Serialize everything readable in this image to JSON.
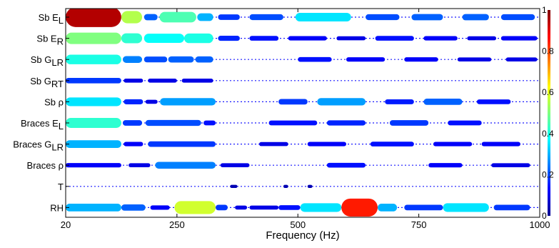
{
  "chart_data": {
    "type": "heatmap",
    "title": "",
    "xlabel": "Frequency (Hz)",
    "ylabel": "",
    "xlim": [
      20,
      1000
    ],
    "x_ticks": [
      "20",
      "250",
      "500",
      "750",
      "1000"
    ],
    "x_tick_values": [
      20,
      250,
      500,
      750,
      1000
    ],
    "rows": [
      {
        "label_main": "Sb E",
        "label_sub": "L",
        "blobs": [
          [
            20,
            135,
            0.95
          ],
          [
            135,
            178,
            0.55
          ],
          [
            182,
            210,
            0.22
          ],
          [
            214,
            290,
            0.45
          ],
          [
            292,
            325,
            0.3
          ],
          [
            335,
            380,
            0.18
          ],
          [
            400,
            470,
            0.2
          ],
          [
            495,
            610,
            0.35
          ],
          [
            640,
            710,
            0.2
          ],
          [
            735,
            800,
            0.22
          ],
          [
            840,
            895,
            0.22
          ],
          [
            920,
            990,
            0.2
          ]
        ]
      },
      {
        "label_main": "Sb E",
        "label_sub": "R",
        "blobs": [
          [
            20,
            135,
            0.5
          ],
          [
            135,
            178,
            0.42
          ],
          [
            182,
            265,
            0.38
          ],
          [
            265,
            325,
            0.4
          ],
          [
            335,
            380,
            0.16
          ],
          [
            400,
            460,
            0.14
          ],
          [
            480,
            560,
            0.12
          ],
          [
            580,
            640,
            0.1
          ],
          [
            660,
            740,
            0.14
          ],
          [
            760,
            830,
            0.12
          ],
          [
            850,
            910,
            0.1
          ],
          [
            920,
            995,
            0.12
          ]
        ]
      },
      {
        "label_main": "Sb G",
        "label_sub": "LR",
        "blobs": [
          [
            20,
            135,
            0.4
          ],
          [
            138,
            178,
            0.25
          ],
          [
            182,
            230,
            0.2
          ],
          [
            232,
            285,
            0.22
          ],
          [
            288,
            325,
            0.22
          ],
          [
            500,
            570,
            0.14
          ],
          [
            600,
            680,
            0.12
          ],
          [
            720,
            790,
            0.12
          ],
          [
            830,
            900,
            0.1
          ],
          [
            930,
            995,
            0.1
          ]
        ]
      },
      {
        "label_main": "Sb G",
        "label_sub": "RT",
        "blobs": [
          [
            20,
            135,
            0.18
          ],
          [
            140,
            180,
            0.1
          ],
          [
            190,
            250,
            0.1
          ],
          [
            260,
            325,
            0.1
          ]
        ]
      },
      {
        "label_main": "Sb ρ",
        "label_sub": "",
        "blobs": [
          [
            20,
            135,
            0.35
          ],
          [
            140,
            180,
            0.16
          ],
          [
            185,
            210,
            0.1
          ],
          [
            215,
            330,
            0.28
          ],
          [
            460,
            520,
            0.18
          ],
          [
            540,
            640,
            0.28
          ],
          [
            680,
            740,
            0.15
          ],
          [
            760,
            840,
            0.22
          ],
          [
            870,
            940,
            0.14
          ]
        ]
      },
      {
        "label_main": "Braces E",
        "label_sub": "L",
        "blobs": [
          [
            20,
            135,
            0.42
          ],
          [
            138,
            178,
            0.18
          ],
          [
            185,
            300,
            0.2
          ],
          [
            305,
            330,
            0.14
          ],
          [
            440,
            540,
            0.14
          ],
          [
            560,
            640,
            0.16
          ],
          [
            690,
            770,
            0.18
          ],
          [
            810,
            880,
            0.14
          ]
        ]
      },
      {
        "label_main": "Braces G",
        "label_sub": "LR",
        "blobs": [
          [
            20,
            135,
            0.3
          ],
          [
            140,
            180,
            0.12
          ],
          [
            190,
            330,
            0.18
          ],
          [
            420,
            480,
            0.1
          ],
          [
            520,
            600,
            0.12
          ],
          [
            650,
            740,
            0.14
          ],
          [
            780,
            860,
            0.12
          ],
          [
            880,
            960,
            0.12
          ]
        ]
      },
      {
        "label_main": "Braces ρ",
        "label_sub": "",
        "blobs": [
          [
            20,
            135,
            0.12
          ],
          [
            150,
            195,
            0.1
          ],
          [
            205,
            330,
            0.25
          ],
          [
            340,
            400,
            0.1
          ],
          [
            560,
            640,
            0.14
          ],
          [
            770,
            840,
            0.12
          ],
          [
            900,
            980,
            0.1
          ]
        ]
      },
      {
        "label_main": "T",
        "label_sub": "",
        "blobs": [
          [
            360,
            375,
            0.05
          ],
          [
            470,
            480,
            0.05
          ],
          [
            520,
            530,
            0.05
          ]
        ]
      },
      {
        "label_main": "RH",
        "label_sub": "",
        "blobs": [
          [
            20,
            135,
            0.3
          ],
          [
            135,
            185,
            0.22
          ],
          [
            195,
            235,
            0.12
          ],
          [
            245,
            330,
            0.58
          ],
          [
            330,
            355,
            0.18
          ],
          [
            370,
            395,
            0.1
          ],
          [
            400,
            460,
            0.1
          ],
          [
            460,
            505,
            0.14
          ],
          [
            505,
            590,
            0.35
          ],
          [
            590,
            665,
            0.85
          ],
          [
            665,
            705,
            0.3
          ],
          [
            720,
            800,
            0.18
          ],
          [
            800,
            895,
            0.35
          ],
          [
            905,
            980,
            0.18
          ]
        ]
      }
    ],
    "colorbar": {
      "min": 0,
      "max": 1,
      "ticks": [
        "0",
        "0.2",
        "0.4",
        "0.6",
        "0.8",
        "1"
      ],
      "tick_values": [
        0,
        0.2,
        0.4,
        0.6,
        0.8,
        1
      ],
      "colormap": "jet"
    },
    "legend": "colorbar-right",
    "grid": false
  },
  "colors": {
    "axis": "#000000",
    "background": "#ffffff"
  }
}
